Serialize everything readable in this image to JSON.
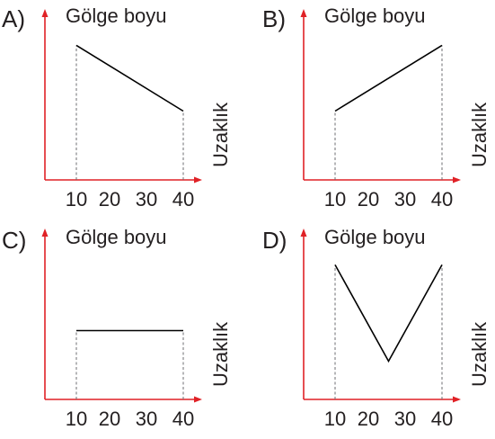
{
  "options": [
    {
      "letter": "A)",
      "y_title": "Gölge boyu",
      "x_title": "Uzaklık",
      "x_ticks": [
        "10",
        "20",
        "30",
        "40"
      ],
      "shape": "decreasing",
      "points": [
        [
          10,
          0.88
        ],
        [
          40,
          0.45
        ]
      ]
    },
    {
      "letter": "B)",
      "y_title": "Gölge boyu",
      "x_title": "Uzaklık",
      "x_ticks": [
        "10",
        "20",
        "30",
        "40"
      ],
      "shape": "increasing",
      "points": [
        [
          10,
          0.45
        ],
        [
          40,
          0.88
        ]
      ]
    },
    {
      "letter": "C)",
      "y_title": "Gölge boyu",
      "x_title": "Uzaklık",
      "x_ticks": [
        "10",
        "20",
        "30",
        "40"
      ],
      "shape": "constant",
      "points": [
        [
          10,
          0.45
        ],
        [
          40,
          0.45
        ]
      ]
    },
    {
      "letter": "D)",
      "y_title": "Gölge boyu",
      "x_title": "Uzaklık",
      "x_ticks": [
        "10",
        "20",
        "30",
        "40"
      ],
      "shape": "v-shape",
      "points": [
        [
          10,
          0.88
        ],
        [
          25,
          0.25
        ],
        [
          40,
          0.88
        ]
      ]
    }
  ]
}
